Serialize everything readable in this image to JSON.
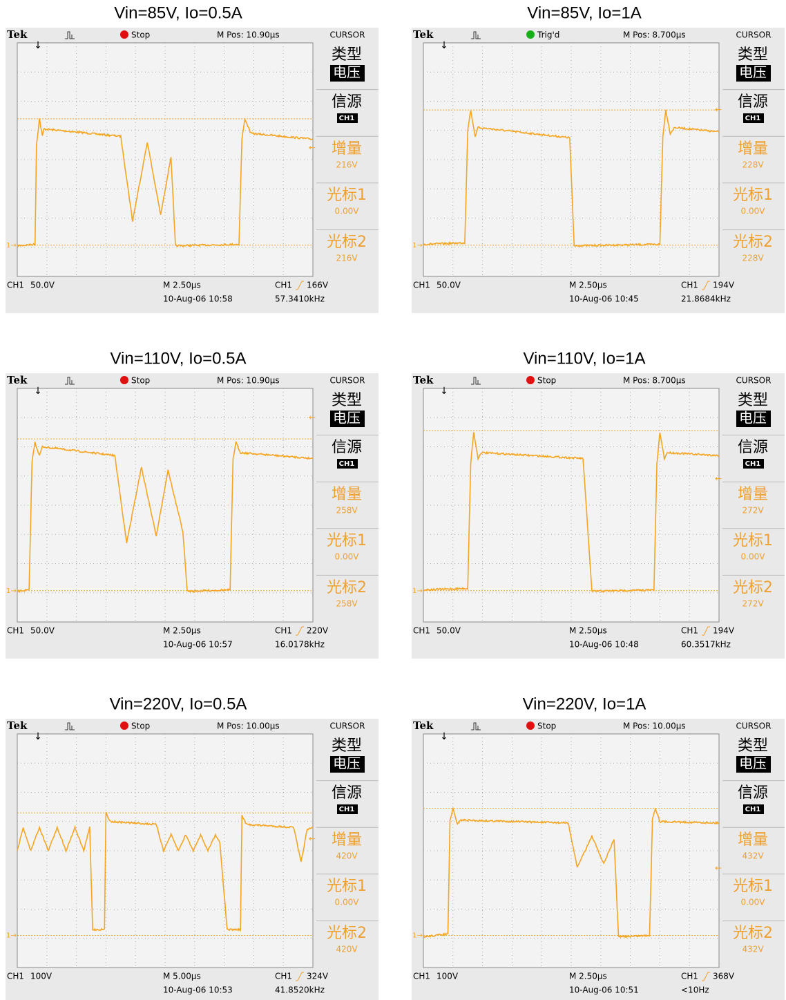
{
  "menu": {
    "tek": "Tek",
    "cursor": "CURSOR",
    "type": "类型",
    "voltage": "电压",
    "source": "信源",
    "ch1": "CH1",
    "delta": "增量",
    "cursor1": "光标1",
    "cursor2": "光标2"
  },
  "panels": [
    {
      "title": "Vin=85V, Io=0.5A",
      "status": "Stop",
      "status_color": "#e01010",
      "mpos": "M Pos: 10.90µs",
      "delta": "216V",
      "cursor1": "0.00V",
      "cursor2": "216V",
      "scale": "50.0V",
      "timebase": "M 2.50µs",
      "trigger": "166V",
      "date": "10-Aug-06 10:58",
      "freq": "57.3410kHz"
    },
    {
      "title": "Vin=85V, Io=1A",
      "status": "Trig'd",
      "status_color": "#18b018",
      "mpos": "M Pos: 8.700µs",
      "delta": "228V",
      "cursor1": "0.00V",
      "cursor2": "228V",
      "scale": "50.0V",
      "timebase": "M 2.50µs",
      "trigger": "194V",
      "date": "10-Aug-06 10:45",
      "freq": "21.8684kHz"
    },
    {
      "title": "Vin=110V, Io=0.5A",
      "status": "Stop",
      "status_color": "#e01010",
      "mpos": "M Pos: 10.90µs",
      "delta": "258V",
      "cursor1": "0.00V",
      "cursor2": "258V",
      "scale": "50.0V",
      "timebase": "M 2.50µs",
      "trigger": "220V",
      "date": "10-Aug-06 10:57",
      "freq": "16.0178kHz"
    },
    {
      "title": "Vin=110V, Io=1A",
      "status": "Stop",
      "status_color": "#e01010",
      "mpos": "M Pos: 8.700µs",
      "delta": "272V",
      "cursor1": "0.00V",
      "cursor2": "272V",
      "scale": "50.0V",
      "timebase": "M 2.50µs",
      "trigger": "194V",
      "date": "10-Aug-06 10:48",
      "freq": "60.3517kHz"
    },
    {
      "title": "Vin=220V, Io=0.5A",
      "status": "Stop",
      "status_color": "#e01010",
      "mpos": "M Pos: 10.00µs",
      "delta": "420V",
      "cursor1": "0.00V",
      "cursor2": "420V",
      "scale": "100V",
      "timebase": "M 5.00µs",
      "trigger": "324V",
      "date": "10-Aug-06 10:53",
      "freq": "41.8520kHz"
    },
    {
      "title": "Vin=220V, Io=1A",
      "status": "Stop",
      "status_color": "#e01010",
      "mpos": "M Pos: 10.00µs",
      "delta": "432V",
      "cursor1": "0.00V",
      "cursor2": "432V",
      "scale": "100V",
      "timebase": "M 2.50µs",
      "trigger": "368V",
      "date": "10-Aug-06 10:51",
      "freq": "<10Hz"
    }
  ]
}
